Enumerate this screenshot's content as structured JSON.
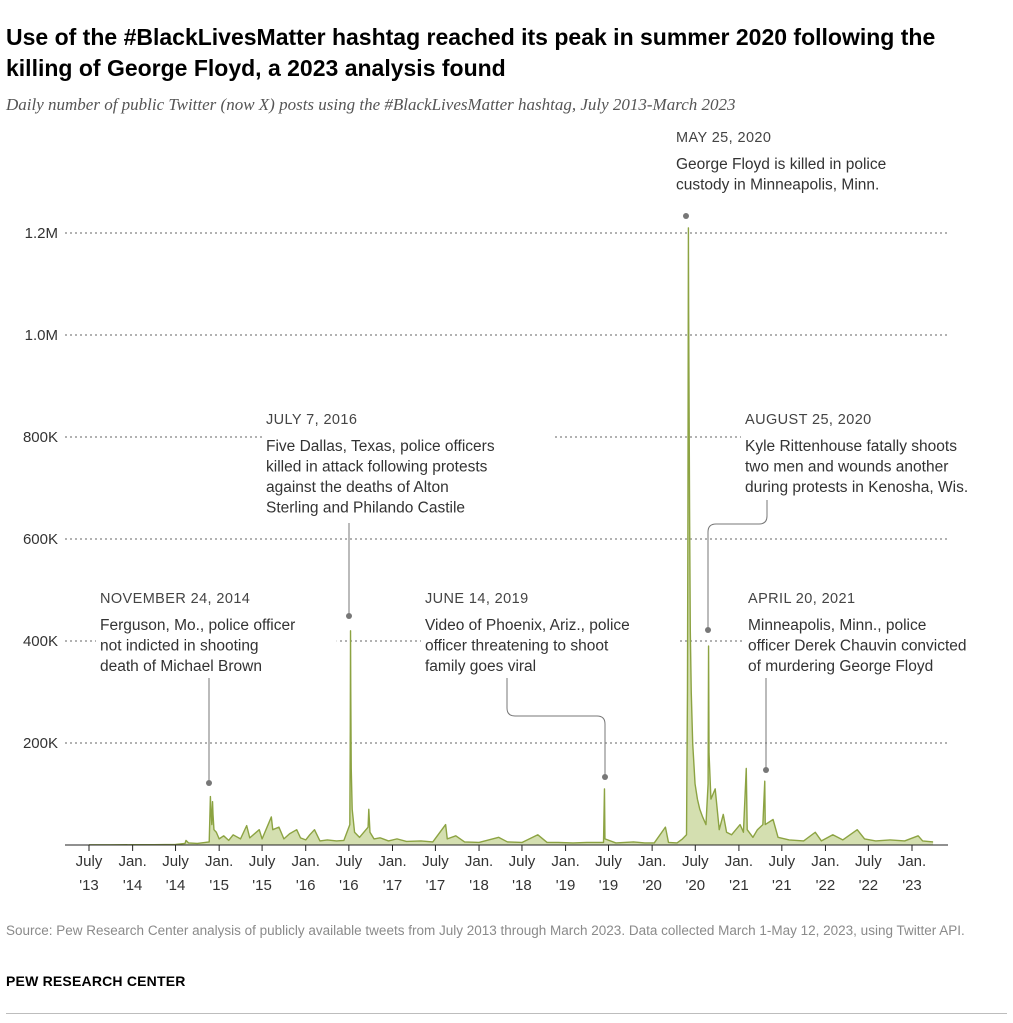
{
  "header": {
    "title": "Use of the #BlackLivesMatter hashtag reached its peak in summer 2020 following the killing of George Floyd, a 2023 analysis found",
    "subtitle": "Daily number of public Twitter (now X) posts using the #BlackLivesMatter hashtag, July 2013-March 2023"
  },
  "footer": {
    "source": "Source: Pew Research Center analysis of publicly available tweets from July 2013 through March 2023. Data collected March 1-May 12, 2023, using Twitter API.",
    "brand": "PEW RESEARCH CENTER"
  },
  "colors": {
    "series": "#8ca342",
    "fill": "#d4dfb0",
    "grid": "#666666",
    "leader": "#777777"
  },
  "chart_data": {
    "type": "area",
    "title": "Use of the #BlackLivesMatter hashtag reached its peak in summer 2020 following the killing of George Floyd, a 2023 analysis found",
    "subtitle": "Daily number of public Twitter (now X) posts using the #BlackLivesMatter hashtag, July 2013-March 2023",
    "x_range": [
      "2013-07-01",
      "2023-03-31"
    ],
    "ylim": [
      0,
      1200000
    ],
    "grid": true,
    "y_ticks": [
      {
        "value": 200000,
        "label": "200K"
      },
      {
        "value": 400000,
        "label": "400K"
      },
      {
        "value": 600000,
        "label": "600K"
      },
      {
        "value": 800000,
        "label": "800K"
      },
      {
        "value": 1000000,
        "label": "1.0M"
      },
      {
        "value": 1200000,
        "label": "1.2M"
      }
    ],
    "x_ticks": [
      {
        "date": "2013-07-01",
        "line1": "July",
        "line2": "'13"
      },
      {
        "date": "2014-01-01",
        "line1": "Jan.",
        "line2": "'14"
      },
      {
        "date": "2014-07-01",
        "line1": "July",
        "line2": "'14"
      },
      {
        "date": "2015-01-01",
        "line1": "Jan.",
        "line2": "'15"
      },
      {
        "date": "2015-07-01",
        "line1": "July",
        "line2": "'15"
      },
      {
        "date": "2016-01-01",
        "line1": "Jan.",
        "line2": "'16"
      },
      {
        "date": "2016-07-01",
        "line1": "July",
        "line2": "'16"
      },
      {
        "date": "2017-01-01",
        "line1": "Jan.",
        "line2": "'17"
      },
      {
        "date": "2017-07-01",
        "line1": "July",
        "line2": "'17"
      },
      {
        "date": "2018-01-01",
        "line1": "Jan.",
        "line2": "'18"
      },
      {
        "date": "2018-07-01",
        "line1": "July",
        "line2": "'18"
      },
      {
        "date": "2019-01-01",
        "line1": "Jan.",
        "line2": "'19"
      },
      {
        "date": "2019-07-01",
        "line1": "July",
        "line2": "'19"
      },
      {
        "date": "2020-01-01",
        "line1": "Jan.",
        "line2": "'20"
      },
      {
        "date": "2020-07-01",
        "line1": "July",
        "line2": "'20"
      },
      {
        "date": "2021-01-01",
        "line1": "Jan.",
        "line2": "'21"
      },
      {
        "date": "2021-07-01",
        "line1": "July",
        "line2": "'21"
      },
      {
        "date": "2022-01-01",
        "line1": "Jan.",
        "line2": "'22"
      },
      {
        "date": "2022-07-01",
        "line1": "July",
        "line2": "'22"
      },
      {
        "date": "2023-01-01",
        "line1": "Jan.",
        "line2": "'23"
      }
    ],
    "series": [
      {
        "points": [
          [
            "2013-07-01",
            300
          ],
          [
            "2013-10-01",
            400
          ],
          [
            "2014-01-01",
            500
          ],
          [
            "2014-04-01",
            600
          ],
          [
            "2014-07-01",
            1000
          ],
          [
            "2014-08-10",
            3000
          ],
          [
            "2014-08-14",
            9000
          ],
          [
            "2014-08-25",
            4000
          ],
          [
            "2014-10-01",
            3000
          ],
          [
            "2014-11-20",
            6000
          ],
          [
            "2014-11-25",
            95000
          ],
          [
            "2014-11-27",
            70000
          ],
          [
            "2014-12-01",
            40000
          ],
          [
            "2014-12-04",
            85000
          ],
          [
            "2014-12-06",
            60000
          ],
          [
            "2014-12-10",
            30000
          ],
          [
            "2014-12-20",
            25000
          ],
          [
            "2015-01-01",
            12000
          ],
          [
            "2015-01-20",
            18000
          ],
          [
            "2015-02-10",
            9000
          ],
          [
            "2015-03-01",
            20000
          ],
          [
            "2015-04-01",
            12000
          ],
          [
            "2015-04-27",
            38000
          ],
          [
            "2015-05-10",
            14000
          ],
          [
            "2015-06-19",
            30000
          ],
          [
            "2015-07-01",
            12000
          ],
          [
            "2015-08-09",
            55000
          ],
          [
            "2015-08-15",
            30000
          ],
          [
            "2015-09-10",
            35000
          ],
          [
            "2015-10-01",
            12000
          ],
          [
            "2015-10-25",
            22000
          ],
          [
            "2015-11-24",
            30000
          ],
          [
            "2015-12-10",
            14000
          ],
          [
            "2016-01-01",
            10000
          ],
          [
            "2016-01-18",
            20000
          ],
          [
            "2016-02-07",
            30000
          ],
          [
            "2016-03-01",
            8000
          ],
          [
            "2016-04-01",
            10000
          ],
          [
            "2016-05-10",
            8000
          ],
          [
            "2016-06-10",
            9000
          ],
          [
            "2016-07-05",
            40000
          ],
          [
            "2016-07-07",
            230000
          ],
          [
            "2016-07-08",
            420000
          ],
          [
            "2016-07-09",
            300000
          ],
          [
            "2016-07-11",
            150000
          ],
          [
            "2016-07-15",
            70000
          ],
          [
            "2016-07-25",
            25000
          ],
          [
            "2016-08-15",
            15000
          ],
          [
            "2016-09-20",
            35000
          ],
          [
            "2016-09-23",
            70000
          ],
          [
            "2016-09-28",
            25000
          ],
          [
            "2016-10-15",
            12000
          ],
          [
            "2016-11-10",
            14000
          ],
          [
            "2016-12-15",
            8000
          ],
          [
            "2017-01-20",
            12000
          ],
          [
            "2017-03-01",
            7000
          ],
          [
            "2017-05-01",
            8000
          ],
          [
            "2017-06-20",
            6000
          ],
          [
            "2017-08-13",
            40000
          ],
          [
            "2017-08-20",
            12000
          ],
          [
            "2017-09-25",
            18000
          ],
          [
            "2017-11-01",
            6000
          ],
          [
            "2018-01-01",
            5000
          ],
          [
            "2018-03-25",
            15000
          ],
          [
            "2018-05-01",
            6000
          ],
          [
            "2018-07-01",
            5000
          ],
          [
            "2018-09-06",
            20000
          ],
          [
            "2018-10-15",
            5000
          ],
          [
            "2018-12-01",
            5000
          ],
          [
            "2019-02-01",
            4000
          ],
          [
            "2019-04-01",
            5000
          ],
          [
            "2019-06-10",
            5000
          ],
          [
            "2019-06-14",
            110000
          ],
          [
            "2019-06-16",
            12000
          ],
          [
            "2019-08-01",
            4000
          ],
          [
            "2019-10-15",
            6000
          ],
          [
            "2019-12-01",
            4000
          ],
          [
            "2020-01-10",
            4000
          ],
          [
            "2020-02-26",
            35000
          ],
          [
            "2020-03-10",
            5000
          ],
          [
            "2020-04-15",
            4000
          ],
          [
            "2020-05-08",
            12000
          ],
          [
            "2020-05-25",
            20000
          ],
          [
            "2020-05-29",
            300000
          ],
          [
            "2020-05-31",
            650000
          ],
          [
            "2020-06-02",
            1210000
          ],
          [
            "2020-06-03",
            1050000
          ],
          [
            "2020-06-05",
            850000
          ],
          [
            "2020-06-07",
            650000
          ],
          [
            "2020-06-10",
            420000
          ],
          [
            "2020-06-14",
            300000
          ],
          [
            "2020-06-20",
            200000
          ],
          [
            "2020-06-30",
            120000
          ],
          [
            "2020-07-10",
            90000
          ],
          [
            "2020-07-20",
            70000
          ],
          [
            "2020-08-01",
            55000
          ],
          [
            "2020-08-15",
            40000
          ],
          [
            "2020-08-24",
            120000
          ],
          [
            "2020-08-26",
            390000
          ],
          [
            "2020-08-28",
            180000
          ],
          [
            "2020-09-05",
            90000
          ],
          [
            "2020-09-23",
            110000
          ],
          [
            "2020-10-10",
            30000
          ],
          [
            "2020-10-27",
            60000
          ],
          [
            "2020-11-10",
            25000
          ],
          [
            "2020-12-01",
            20000
          ],
          [
            "2021-01-06",
            40000
          ],
          [
            "2021-01-20",
            25000
          ],
          [
            "2021-02-01",
            150000
          ],
          [
            "2021-02-05",
            30000
          ],
          [
            "2021-03-01",
            15000
          ],
          [
            "2021-03-20",
            30000
          ],
          [
            "2021-04-12",
            40000
          ],
          [
            "2021-04-20",
            125000
          ],
          [
            "2021-04-22",
            40000
          ],
          [
            "2021-05-25",
            50000
          ],
          [
            "2021-06-15",
            15000
          ],
          [
            "2021-08-01",
            10000
          ],
          [
            "2021-10-01",
            8000
          ],
          [
            "2021-11-19",
            25000
          ],
          [
            "2021-12-15",
            8000
          ],
          [
            "2022-02-01",
            20000
          ],
          [
            "2022-03-15",
            10000
          ],
          [
            "2022-05-15",
            30000
          ],
          [
            "2022-06-15",
            12000
          ],
          [
            "2022-08-01",
            8000
          ],
          [
            "2022-10-01",
            10000
          ],
          [
            "2022-12-01",
            8000
          ],
          [
            "2023-01-27",
            18000
          ],
          [
            "2023-02-15",
            8000
          ],
          [
            "2023-03-31",
            6000
          ]
        ]
      }
    ],
    "annotations": [
      {
        "date_label": "NOVEMBER 24, 2014",
        "lines": [
          "Ferguson, Mo., police officer",
          "not indicted in shooting",
          "death of Michael Brown"
        ]
      },
      {
        "date_label": "JULY 7, 2016",
        "lines": [
          "Five Dallas, Texas, police officers",
          "killed in attack following protests",
          "against the deaths of Alton",
          "Sterling and Philando Castile"
        ]
      },
      {
        "date_label": "JUNE 14, 2019",
        "lines": [
          "Video of Phoenix, Ariz., police",
          "officer threatening to shoot",
          "family goes viral"
        ]
      },
      {
        "date_label": "MAY 25, 2020",
        "lines": [
          "George Floyd is killed in police",
          "custody in Minneapolis, Minn."
        ]
      },
      {
        "date_label": "AUGUST 25, 2020",
        "lines": [
          "Kyle Rittenhouse fatally shoots",
          "two men and wounds another",
          "during protests in Kenosha, Wis."
        ]
      },
      {
        "date_label": "APRIL 20, 2021",
        "lines": [
          "Minneapolis, Minn., police",
          "officer Derek Chauvin convicted",
          "of murdering George Floyd"
        ]
      }
    ]
  }
}
